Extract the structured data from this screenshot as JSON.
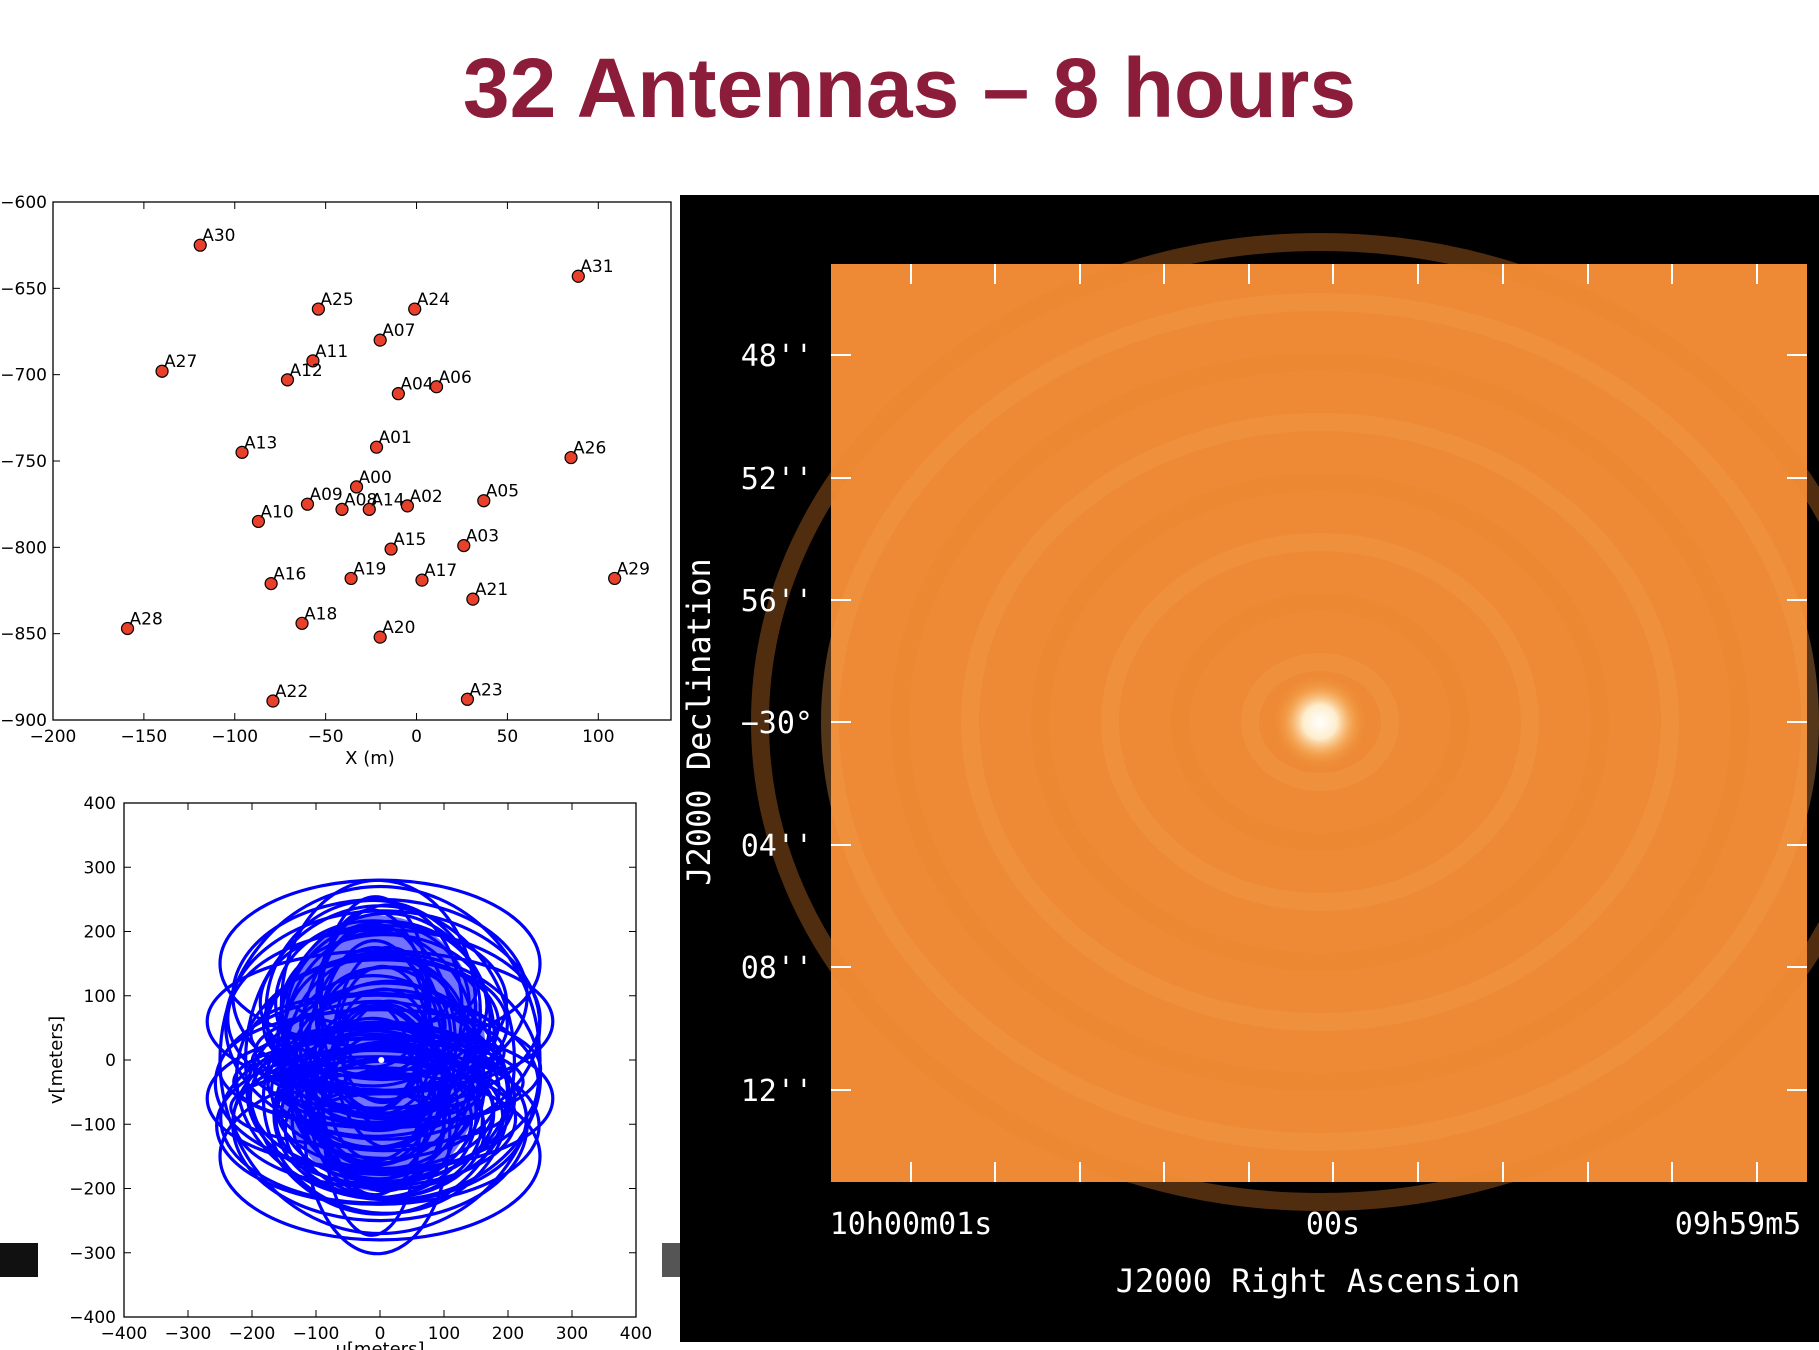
{
  "title": "32 Antennas –  8 hours",
  "chart_data": [
    {
      "type": "scatter",
      "name": "antenna-layout",
      "xlabel": "X (m)",
      "ylabel": "",
      "xlim": [
        -200,
        140
      ],
      "ylim": [
        -900,
        -600
      ],
      "x_ticks": [
        "−200",
        "−150",
        "−100",
        "−50",
        "0",
        "50",
        "100"
      ],
      "y_ticks": [
        "−600",
        "−650",
        "−700",
        "−750",
        "−800",
        "−850",
        "−900"
      ],
      "point_color": "#e8402a",
      "points": [
        {
          "label": "A30",
          "x": -119,
          "y": -625
        },
        {
          "label": "A31",
          "x": 89,
          "y": -643
        },
        {
          "label": "A25",
          "x": -54,
          "y": -662
        },
        {
          "label": "A24",
          "x": -1,
          "y": -662
        },
        {
          "label": "A07",
          "x": -20,
          "y": -680
        },
        {
          "label": "A11",
          "x": -57,
          "y": -692
        },
        {
          "label": "A27",
          "x": -140,
          "y": -698
        },
        {
          "label": "A12",
          "x": -71,
          "y": -703
        },
        {
          "label": "A04",
          "x": -10,
          "y": -711
        },
        {
          "label": "A06",
          "x": 11,
          "y": -707
        },
        {
          "label": "A01",
          "x": -22,
          "y": -742
        },
        {
          "label": "A13",
          "x": -96,
          "y": -745
        },
        {
          "label": "A26",
          "x": 85,
          "y": -748
        },
        {
          "label": "A00",
          "x": -33,
          "y": -765
        },
        {
          "label": "A05",
          "x": 37,
          "y": -773
        },
        {
          "label": "A09",
          "x": -60,
          "y": -775
        },
        {
          "label": "A08",
          "x": -41,
          "y": -778
        },
        {
          "label": "A14",
          "x": -26,
          "y": -778
        },
        {
          "label": "A02",
          "x": -5,
          "y": -776
        },
        {
          "label": "A10",
          "x": -87,
          "y": -785
        },
        {
          "label": "A03",
          "x": 26,
          "y": -799
        },
        {
          "label": "A15",
          "x": -14,
          "y": -801
        },
        {
          "label": "A16",
          "x": -80,
          "y": -821
        },
        {
          "label": "A19",
          "x": -36,
          "y": -818
        },
        {
          "label": "A17",
          "x": 3,
          "y": -819
        },
        {
          "label": "A29",
          "x": 109,
          "y": -818
        },
        {
          "label": "A21",
          "x": 31,
          "y": -830
        },
        {
          "label": "A28",
          "x": -159,
          "y": -847
        },
        {
          "label": "A18",
          "x": -63,
          "y": -844
        },
        {
          "label": "A20",
          "x": -20,
          "y": -852
        },
        {
          "label": "A22",
          "x": -79,
          "y": -889
        },
        {
          "label": "A23",
          "x": 28,
          "y": -888
        }
      ]
    },
    {
      "type": "scatter",
      "name": "uv-coverage",
      "xlabel": "u[meters]",
      "ylabel": "v[meters]",
      "xlim": [
        -400,
        400
      ],
      "ylim": [
        -400,
        400
      ],
      "x_ticks": [
        "−400",
        "−300",
        "−200",
        "−100",
        "0",
        "100",
        "200",
        "300",
        "400"
      ],
      "y_ticks": [
        "400",
        "300",
        "200",
        "100",
        "0",
        "−100",
        "−200",
        "−300",
        "−400"
      ],
      "track_color": "#0000ff",
      "description_tracks": "elliptical uv tracks, |u| up to ~270 m, |v| up to ~280 m"
    },
    {
      "type": "heatmap",
      "name": "dirty-image",
      "xlabel": "J2000 Right Ascension",
      "ylabel": "J2000 Declination",
      "x_ticks": [
        "10h00m01s",
        "00s",
        "09h59m5"
      ],
      "y_ticks": [
        "48''",
        "52''",
        "56''",
        "−30°",
        "04''",
        "08''",
        "12''"
      ],
      "background_color": "#ee8a36",
      "source": {
        "ra_label": "00s",
        "dec_label": "−30°",
        "color": "#ffffff"
      }
    }
  ]
}
